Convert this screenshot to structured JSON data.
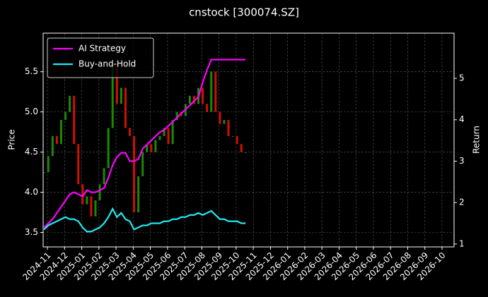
{
  "chart_data": {
    "type": "price-return",
    "title": "cnstock [300074.SZ]",
    "y_label": "Price",
    "y2_label": "Return",
    "grid": true,
    "legend": "upper left",
    "xlim": [
      -0.25,
      23.7
    ],
    "xticks": [
      {
        "value": 0,
        "label": "2024-11"
      },
      {
        "value": 1,
        "label": "2024-12"
      },
      {
        "value": 2,
        "label": "2025-01"
      },
      {
        "value": 3,
        "label": "2025-02"
      },
      {
        "value": 4,
        "label": "2025-03"
      },
      {
        "value": 5,
        "label": "2025-04"
      },
      {
        "value": 6,
        "label": "2025-05"
      },
      {
        "value": 7,
        "label": "2025-06"
      },
      {
        "value": 8,
        "label": "2025-07"
      },
      {
        "value": 9,
        "label": "2025-08"
      },
      {
        "value": 10,
        "label": "2025-09"
      },
      {
        "value": 11,
        "label": "2025-10"
      },
      {
        "value": 12,
        "label": "2025-11"
      },
      {
        "value": 13,
        "label": "2025-12"
      },
      {
        "value": 14,
        "label": "2026-01"
      },
      {
        "value": 15,
        "label": "2026-02"
      },
      {
        "value": 16,
        "label": "2026-03"
      },
      {
        "value": 17,
        "label": "2026-04"
      },
      {
        "value": 18,
        "label": "2026-05"
      },
      {
        "value": 19,
        "label": "2026-06"
      },
      {
        "value": 20,
        "label": "2026-07"
      },
      {
        "value": 21,
        "label": "2026-08"
      },
      {
        "value": 22,
        "label": "2026-09"
      },
      {
        "value": 23,
        "label": "2026-10"
      }
    ],
    "ylim": [
      3.32,
      5.98
    ],
    "yticks": [
      3.5,
      {
        "value": 4,
        "label": "4.0"
      },
      4.5,
      {
        "value": 5,
        "label": "5.0"
      },
      5.5
    ],
    "y2lim": [
      0.93,
      6.09
    ],
    "y2ticks": [
      1,
      2,
      3,
      4,
      5
    ],
    "x": [
      -0.2,
      0.05,
      0.3,
      0.55,
      0.8,
      1.05,
      1.3,
      1.55,
      1.8,
      2.05,
      2.3,
      2.55,
      2.8,
      3.05,
      3.3,
      3.55,
      3.8,
      4.05,
      4.3,
      4.55,
      4.8,
      5.05,
      5.3,
      5.55,
      5.8,
      6.05,
      6.3,
      6.55,
      6.8,
      7.05,
      7.3,
      7.55,
      7.8,
      8.05,
      8.3,
      8.55,
      8.8,
      9.05,
      9.3,
      9.55,
      9.8,
      10.05,
      10.3,
      10.55,
      10.8,
      11.05,
      11.3,
      11.55
    ],
    "price": {
      "up_color": "#1a8a00",
      "down_color": "#d01000",
      "values": [
        4.25,
        4.45,
        4.7,
        4.6,
        4.9,
        5.0,
        5.2,
        4.6,
        4.1,
        3.85,
        3.95,
        3.7,
        3.9,
        4.1,
        4.3,
        4.8,
        5.6,
        5.1,
        5.3,
        4.8,
        4.7,
        3.75,
        4.2,
        4.5,
        4.6,
        4.5,
        4.65,
        4.7,
        4.8,
        4.6,
        4.9,
        5.0,
        4.95,
        5.1,
        5.2,
        5.1,
        5.3,
        5.1,
        5.0,
        5.5,
        5.0,
        4.85,
        4.9,
        4.7,
        4.7,
        4.6,
        4.5,
        4.5
      ]
    },
    "series": [
      {
        "name": "AI Strategy",
        "color": "#ff00ff",
        "axis": "y2",
        "values": [
          1.4,
          1.5,
          1.6,
          1.75,
          1.9,
          2.05,
          2.2,
          2.25,
          2.2,
          2.15,
          2.3,
          2.25,
          2.25,
          2.3,
          2.35,
          2.6,
          2.9,
          3.1,
          3.2,
          3.2,
          3.0,
          3.0,
          3.05,
          3.3,
          3.4,
          3.5,
          3.6,
          3.7,
          3.75,
          3.85,
          3.95,
          4.05,
          4.15,
          4.25,
          4.35,
          4.45,
          4.55,
          4.9,
          5.2,
          5.45,
          5.45,
          5.45,
          5.45,
          5.45,
          5.45,
          5.45,
          5.45,
          5.45
        ]
      },
      {
        "name": "Buy-and-Hold",
        "color": "#22e8f0",
        "axis": "y2",
        "values": [
          1.35,
          1.45,
          1.5,
          1.55,
          1.6,
          1.65,
          1.6,
          1.6,
          1.55,
          1.4,
          1.3,
          1.3,
          1.35,
          1.4,
          1.5,
          1.65,
          1.85,
          1.65,
          1.75,
          1.6,
          1.55,
          1.35,
          1.4,
          1.45,
          1.45,
          1.5,
          1.5,
          1.5,
          1.55,
          1.55,
          1.6,
          1.6,
          1.65,
          1.65,
          1.7,
          1.7,
          1.75,
          1.7,
          1.75,
          1.8,
          1.7,
          1.6,
          1.6,
          1.55,
          1.55,
          1.55,
          1.5,
          1.5
        ]
      }
    ]
  }
}
